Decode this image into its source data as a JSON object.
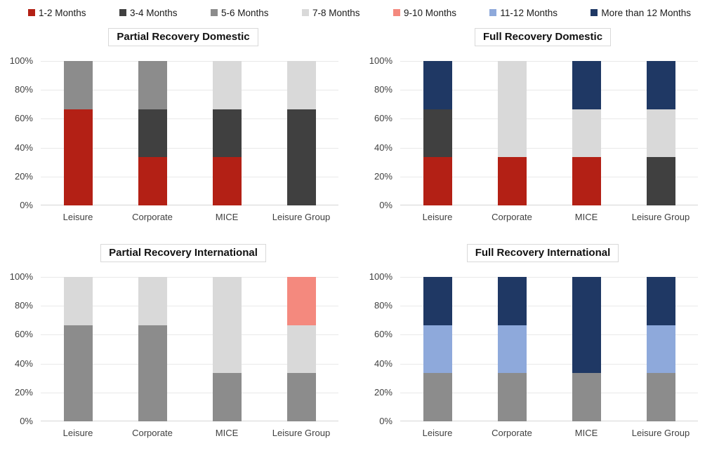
{
  "colors": {
    "1-2 Months": "#b32015",
    "3-4 Months": "#404040",
    "5-6 Months": "#8c8c8c",
    "7-8 Months": "#d9d9d9",
    "9-10 Months": "#f4897e",
    "11-12 Months": "#8ea9db",
    "More than 12 Months": "#1f3864"
  },
  "legend": {
    "position": "top",
    "items": [
      {
        "label": "1-2 Months",
        "color": "#b32015"
      },
      {
        "label": "3-4 Months",
        "color": "#404040"
      },
      {
        "label": "5-6 Months",
        "color": "#8c8c8c"
      },
      {
        "label": "7-8 Months",
        "color": "#d9d9d9"
      },
      {
        "label": "9-10 Months",
        "color": "#f4897e"
      },
      {
        "label": "11-12 Months",
        "color": "#8ea9db"
      },
      {
        "label": "More than 12 Months",
        "color": "#1f3864"
      }
    ]
  },
  "chart_data": [
    {
      "type": "bar",
      "stacked": true,
      "title": "Partial Recovery Domestic",
      "categories": [
        "Leisure",
        "Corporate",
        "MICE",
        "Leisure Group"
      ],
      "series": [
        {
          "name": "1-2 Months",
          "values": [
            66.7,
            33.3,
            33.3,
            0
          ]
        },
        {
          "name": "3-4 Months",
          "values": [
            0,
            33.4,
            33.4,
            66.7
          ]
        },
        {
          "name": "5-6 Months",
          "values": [
            33.3,
            33.3,
            0,
            0
          ]
        },
        {
          "name": "7-8 Months",
          "values": [
            0,
            0,
            33.3,
            33.3
          ]
        },
        {
          "name": "9-10 Months",
          "values": [
            0,
            0,
            0,
            0
          ]
        },
        {
          "name": "11-12 Months",
          "values": [
            0,
            0,
            0,
            0
          ]
        },
        {
          "name": "More than 12 Months",
          "values": [
            0,
            0,
            0,
            0
          ]
        }
      ],
      "xlabel": "",
      "ylabel": "",
      "ylim": [
        0,
        100
      ],
      "yticks": [
        "0%",
        "20%",
        "40%",
        "60%",
        "80%",
        "100%"
      ],
      "grid": true,
      "legend_position": "shared-top"
    },
    {
      "type": "bar",
      "stacked": true,
      "title": "Full Recovery Domestic",
      "categories": [
        "Leisure",
        "Corporate",
        "MICE",
        "Leisure Group"
      ],
      "series": [
        {
          "name": "1-2 Months",
          "values": [
            33.3,
            33.3,
            33.3,
            0
          ]
        },
        {
          "name": "3-4 Months",
          "values": [
            33.4,
            0,
            0,
            33.3
          ]
        },
        {
          "name": "5-6 Months",
          "values": [
            0,
            0,
            0,
            0
          ]
        },
        {
          "name": "7-8 Months",
          "values": [
            0,
            66.7,
            33.4,
            33.4
          ]
        },
        {
          "name": "9-10 Months",
          "values": [
            0,
            0,
            0,
            0
          ]
        },
        {
          "name": "11-12 Months",
          "values": [
            0,
            0,
            0,
            0
          ]
        },
        {
          "name": "More than 12 Months",
          "values": [
            33.3,
            0,
            33.3,
            33.3
          ]
        }
      ],
      "xlabel": "",
      "ylabel": "",
      "ylim": [
        0,
        100
      ],
      "yticks": [
        "0%",
        "20%",
        "40%",
        "60%",
        "80%",
        "100%"
      ],
      "grid": true,
      "legend_position": "shared-top"
    },
    {
      "type": "bar",
      "stacked": true,
      "title": "Partial Recovery International",
      "categories": [
        "Leisure",
        "Corporate",
        "MICE",
        "Leisure Group"
      ],
      "series": [
        {
          "name": "1-2 Months",
          "values": [
            0,
            0,
            0,
            0
          ]
        },
        {
          "name": "3-4 Months",
          "values": [
            0,
            0,
            0,
            0
          ]
        },
        {
          "name": "5-6 Months",
          "values": [
            66.7,
            66.7,
            33.3,
            33.3
          ]
        },
        {
          "name": "7-8 Months",
          "values": [
            33.3,
            33.3,
            66.7,
            33.4
          ]
        },
        {
          "name": "9-10 Months",
          "values": [
            0,
            0,
            0,
            33.3
          ]
        },
        {
          "name": "11-12 Months",
          "values": [
            0,
            0,
            0,
            0
          ]
        },
        {
          "name": "More than 12 Months",
          "values": [
            0,
            0,
            0,
            0
          ]
        }
      ],
      "xlabel": "",
      "ylabel": "",
      "ylim": [
        0,
        100
      ],
      "yticks": [
        "0%",
        "20%",
        "40%",
        "60%",
        "80%",
        "100%"
      ],
      "grid": true,
      "legend_position": "shared-top"
    },
    {
      "type": "bar",
      "stacked": true,
      "title": "Full Recovery International",
      "categories": [
        "Leisure",
        "Corporate",
        "MICE",
        "Leisure Group"
      ],
      "series": [
        {
          "name": "1-2 Months",
          "values": [
            0,
            0,
            0,
            0
          ]
        },
        {
          "name": "3-4 Months",
          "values": [
            0,
            0,
            0,
            0
          ]
        },
        {
          "name": "5-6 Months",
          "values": [
            33.3,
            33.3,
            33.3,
            33.3
          ]
        },
        {
          "name": "7-8 Months",
          "values": [
            0,
            0,
            0,
            0
          ]
        },
        {
          "name": "9-10 Months",
          "values": [
            0,
            0,
            0,
            0
          ]
        },
        {
          "name": "11-12 Months",
          "values": [
            33.4,
            33.4,
            0,
            33.4
          ]
        },
        {
          "name": "More than 12 Months",
          "values": [
            33.3,
            33.3,
            66.7,
            33.3
          ]
        }
      ],
      "xlabel": "",
      "ylabel": "",
      "ylim": [
        0,
        100
      ],
      "yticks": [
        "0%",
        "20%",
        "40%",
        "60%",
        "80%",
        "100%"
      ],
      "grid": true,
      "legend_position": "shared-top"
    }
  ]
}
